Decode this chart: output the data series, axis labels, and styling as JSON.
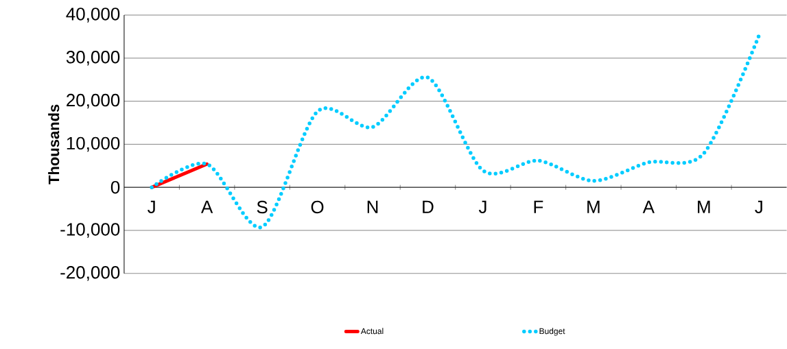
{
  "chart_data": {
    "type": "line",
    "ylabel": "Thousands",
    "categories": [
      "J",
      "A",
      "S",
      "O",
      "N",
      "D",
      "J",
      "F",
      "M",
      "A",
      "M",
      "J"
    ],
    "series": [
      {
        "name": "Actual",
        "color": "#ff0000",
        "line_style": "solid",
        "values": [
          0,
          5400,
          null,
          null,
          null,
          null,
          null,
          null,
          null,
          null,
          null,
          null
        ]
      },
      {
        "name": "Budget",
        "color": "#00ccff",
        "line_style": "dotted",
        "values": [
          0,
          5400,
          -9200,
          17600,
          14000,
          25500,
          3900,
          6200,
          1500,
          5800,
          7900,
          35300
        ]
      }
    ],
    "ylim": [
      -20000,
      40000
    ],
    "yticks": [
      {
        "value": -20000,
        "label": "-20,000"
      },
      {
        "value": -10000,
        "label": "-10,000"
      },
      {
        "value": 0,
        "label": "0"
      },
      {
        "value": 10000,
        "label": "10,000"
      },
      {
        "value": 20000,
        "label": "20,000"
      },
      {
        "value": 30000,
        "label": "30,000"
      },
      {
        "value": 40000,
        "label": "40,000"
      }
    ],
    "grid": "y",
    "legend": "bottom",
    "marker": "none"
  }
}
